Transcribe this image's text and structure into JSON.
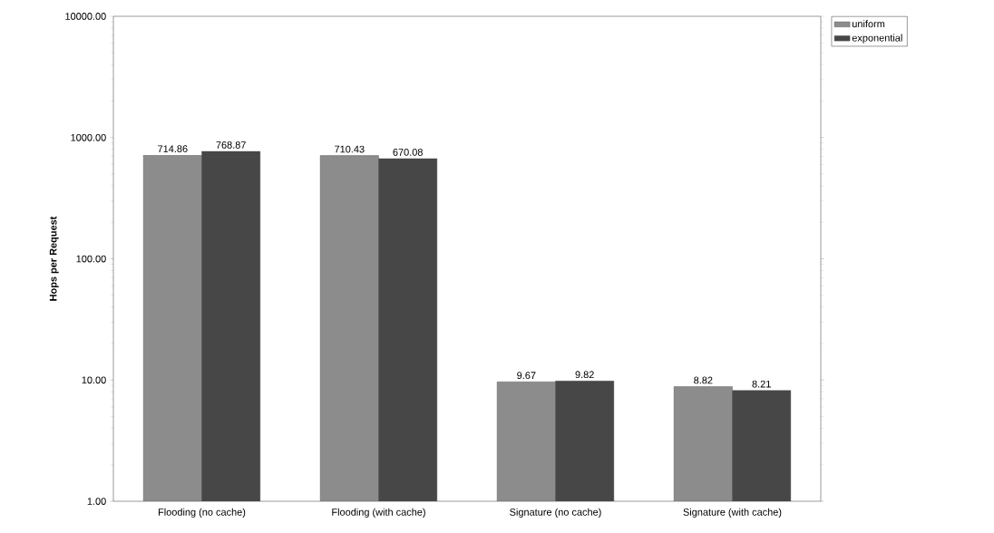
{
  "chart_data": {
    "type": "bar",
    "ylabel": "Hops per Request",
    "categories": [
      "Flooding (no cache)",
      "Flooding (with cache)",
      "Signature (no cache)",
      "Signature (with cache)"
    ],
    "series": [
      {
        "name": "uniform",
        "color": "#8c8c8c",
        "values": [
          714.86,
          710.43,
          9.67,
          8.82
        ],
        "value_labels": [
          "714.86",
          "710.43",
          "9.67",
          "8.82"
        ]
      },
      {
        "name": "exponential",
        "color": "#474747",
        "values": [
          768.87,
          670.08,
          9.82,
          8.21
        ],
        "value_labels": [
          "768.87",
          "670.08",
          "9.82",
          "8.21"
        ]
      }
    ],
    "log": "y",
    "ylim": [
      1,
      10000
    ],
    "yticks": [
      {
        "value": 1,
        "label": "1.00"
      },
      {
        "value": 10,
        "label": "10.00"
      },
      {
        "value": 100,
        "label": "100.00"
      },
      {
        "value": 1000,
        "label": "1000.00"
      },
      {
        "value": 10000,
        "label": "10000.00"
      }
    ],
    "legend": "top right"
  }
}
